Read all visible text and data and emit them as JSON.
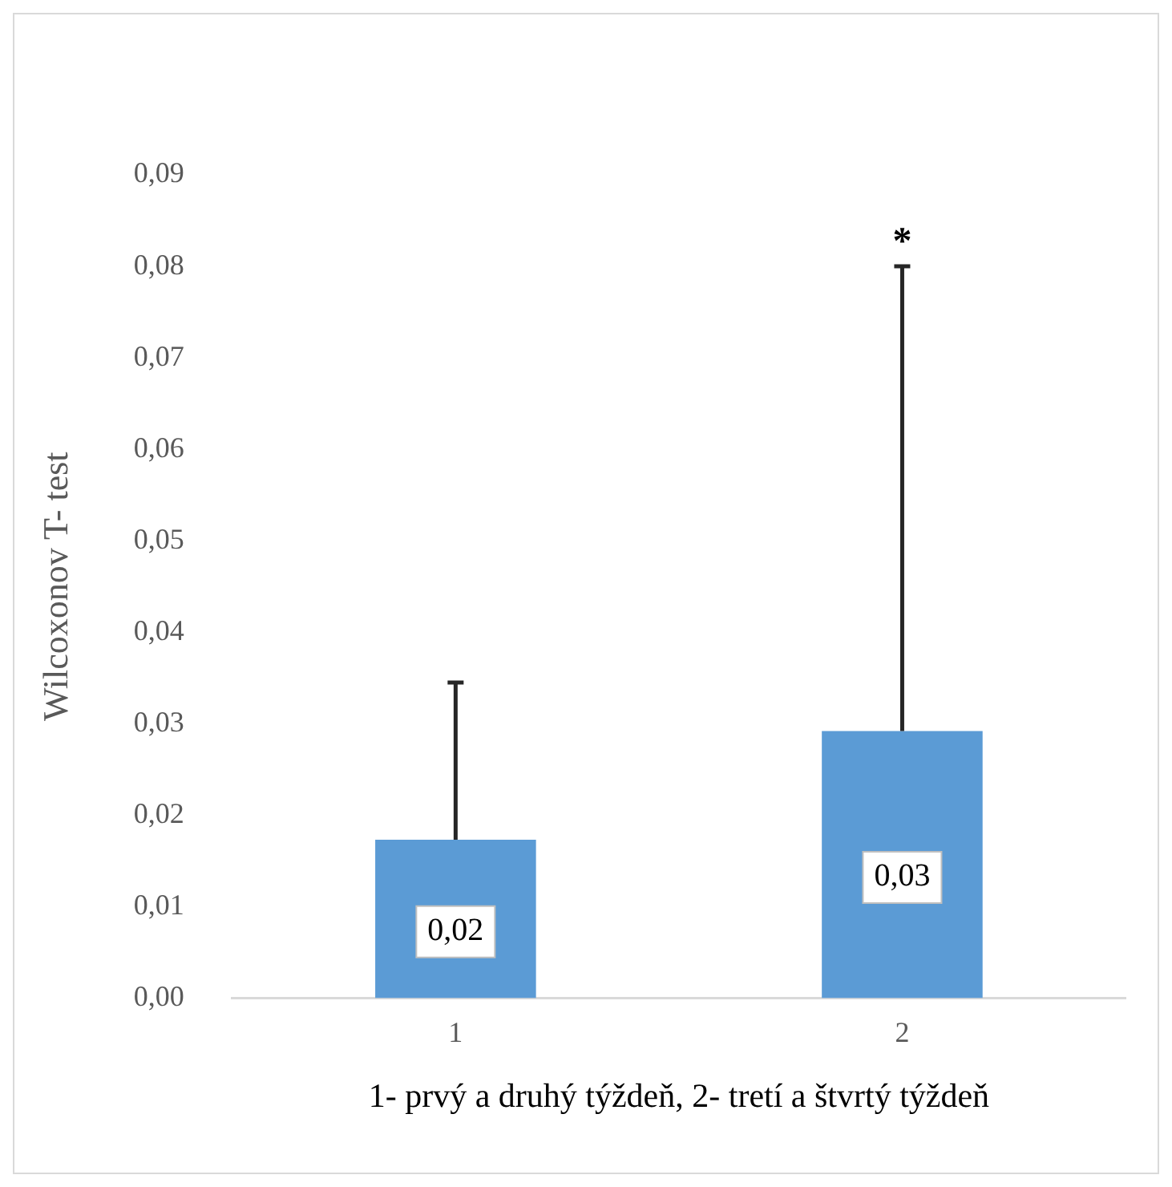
{
  "chart_data": {
    "type": "bar",
    "xlabel": "1- prvý a druhý týždeň, 2- tretí a štvrtý týždeň",
    "ylabel": "Wilcoxonov T- test",
    "categories": [
      "1",
      "2"
    ],
    "values": [
      0.0173,
      0.0292
    ],
    "color": "#5b9bd5",
    "errors": [
      [
        0.0173,
        0.0345
      ],
      [
        0.0292,
        0.08
      ]
    ],
    "value_labels": [
      "0,02",
      "0,03"
    ],
    "annotations": [
      {
        "text": "*",
        "x": "2",
        "y": 0.08
      }
    ],
    "ylim": [
      0,
      0.09
    ],
    "yticks": [
      {
        "value": 0,
        "label": "0,00"
      },
      {
        "value": 0.01,
        "label": "0,01"
      },
      {
        "value": 0.02,
        "label": "0,02"
      },
      {
        "value": 0.03,
        "label": "0,03"
      },
      {
        "value": 0.04,
        "label": "0,04"
      },
      {
        "value": 0.05,
        "label": "0,05"
      },
      {
        "value": 0.06,
        "label": "0,06"
      },
      {
        "value": 0.07,
        "label": "0,07"
      },
      {
        "value": 0.08,
        "label": "0,08"
      },
      {
        "value": 0.09,
        "label": "0,09"
      }
    ],
    "grid": false,
    "legend": false
  }
}
